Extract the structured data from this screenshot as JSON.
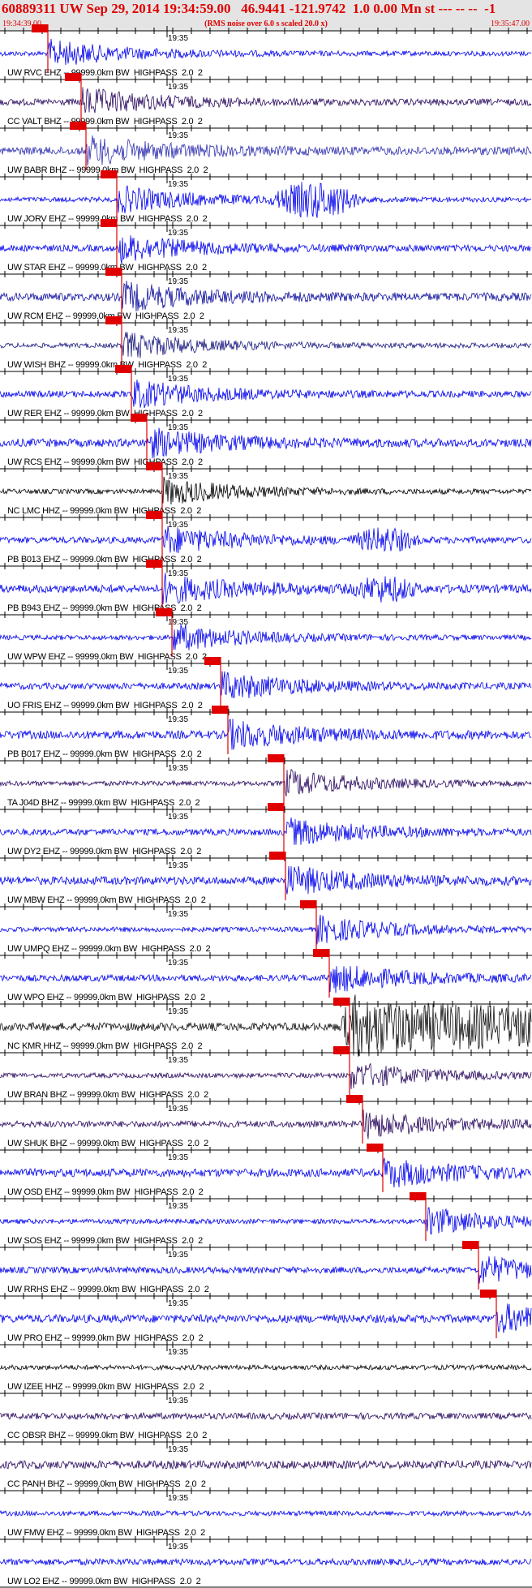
{
  "header": {
    "title": "60889311 UW Sep 29, 2014 19:34:59.00   46.9441 -121.9742  1.0 0.00 Mn st --- -- --  -1",
    "subtitle": "(RMS noise over 6.0 s scaled 20.0 x)",
    "start_time": "19:34:39.00",
    "end_time": "19:35:47.00"
  },
  "traces": [
    {
      "label": "UW RVC EHZ -- 99999.0km BW  HIGHPASS  2.0  2",
      "time_label": "19:35"
    },
    {
      "label": "CC VALT BHZ -- 99999.0km BW  HIGHPASS  2.0  2",
      "time_label": "19:35"
    },
    {
      "label": "UW BABR BHZ -- 99999.0km BW  HIGHPASS  2.0  2",
      "time_label": "19:35"
    },
    {
      "label": "UW JORV EHZ -- 99999.0km BW  HIGHPASS  2.0  2",
      "time_label": "19:35"
    },
    {
      "label": "UW STAR EHZ -- 99999.0km BW  HIGHPASS  2.0  2",
      "time_label": "19:35"
    },
    {
      "label": "UW RCM EHZ -- 99999.0km BW  HIGHPASS  2.0  2",
      "time_label": "19:35"
    },
    {
      "label": "UW WISH BHZ -- 99999.0km BW  HIGHPASS  2.0  2",
      "time_label": "19:35"
    },
    {
      "label": "UW RER EHZ -- 99999.0km BW  HIGHPASS  2.0  2",
      "time_label": "19:35"
    },
    {
      "label": "UW RCS EHZ -- 99999.0km BW  HIGHPASS  2.0  2",
      "time_label": "19:35"
    },
    {
      "label": "NC LMC HHZ -- 99999.0km BW  HIGHPASS  2.0  2",
      "time_label": "19:35"
    },
    {
      "label": "PB B013 EHZ -- 99999.0km BW  HIGHPASS  2.0  2",
      "time_label": "19:35"
    },
    {
      "label": "PB B943 EHZ -- 99999.0km BW  HIGHPASS  2.0  2",
      "time_label": "19:35"
    },
    {
      "label": "UW WPW EHZ -- 99999.0km BW  HIGHPASS  2.0  2",
      "time_label": "19:35"
    },
    {
      "label": "UO FRIS EHZ -- 99999.0km BW  HIGHPASS  2.0  2",
      "time_label": "19:35"
    },
    {
      "label": "PB B017 EHZ -- 99999.0km BW  HIGHPASS  2.0  2",
      "time_label": "19:35"
    },
    {
      "label": "TA J04D BHZ -- 99999.0km BW  HIGHPASS  2.0  2",
      "time_label": "19:35"
    },
    {
      "label": "UW DY2 EHZ -- 99999.0km BW  HIGHPASS  2.0  2",
      "time_label": "19:35"
    },
    {
      "label": "UW MBW EHZ -- 99999.0km BW  HIGHPASS  2.0  2",
      "time_label": "19:35"
    },
    {
      "label": "UW UMPQ EHZ -- 99999.0km BW  HIGHPASS  2.0  2",
      "time_label": "19:35"
    },
    {
      "label": "UW WPO EHZ -- 99999.0km BW  HIGHPASS  2.0  2",
      "time_label": "19:35"
    },
    {
      "label": "NC KMR HHZ -- 99999.0km BW  HIGHPASS  2.0  2",
      "time_label": "19:35"
    },
    {
      "label": "UW BRAN BHZ -- 99999.0km BW  HIGHPASS  2.0  2",
      "time_label": "19:35"
    },
    {
      "label": "UW SHUK BHZ -- 99999.0km BW  HIGHPASS  2.0  2",
      "time_label": "19:35"
    },
    {
      "label": "UW OSD EHZ -- 99999.0km BW  HIGHPASS  2.0  2",
      "time_label": "19:35"
    },
    {
      "label": "UW SOS EHZ -- 99999.0km BW  HIGHPASS  2.0  2",
      "time_label": "19:35"
    },
    {
      "label": "UW RRHS EHZ -- 99999.0km BW  HIGHPASS  2.0  2",
      "time_label": "19:35"
    },
    {
      "label": "UW PRO EHZ -- 99999.0km BW  HIGHPASS  2.0  2",
      "time_label": "19:35"
    },
    {
      "label": "UW IZEE HHZ -- 99999.0km BW  HIGHPASS  2.0  2",
      "time_label": "19:35"
    },
    {
      "label": "CC OBSR BHZ -- 99999.0km BW  HIGHPASS  2.0  2",
      "time_label": "19:35"
    },
    {
      "label": "CC PANH BHZ -- 99999.0km BW  HIGHPASS  2.0  2",
      "time_label": "19:35"
    },
    {
      "label": "UW FMW EHZ -- 99999.0km BW  HIGHPASS  2.0  2",
      "time_label": "19:35"
    },
    {
      "label": "UW LO2 EHZ -- 99999.0km BW  HIGHPASS  2.0  2",
      "time_label": "19:35"
    }
  ]
}
